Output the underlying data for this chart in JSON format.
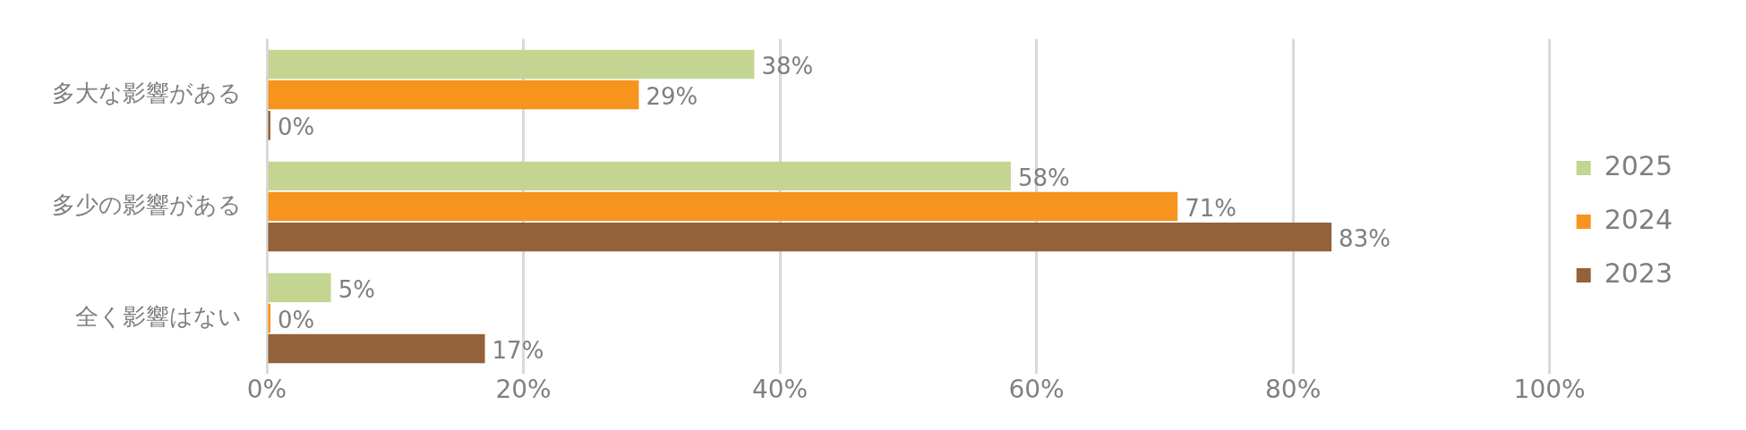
{
  "chart_data": {
    "type": "bar",
    "orientation": "horizontal",
    "categories": [
      "多大な影響がある",
      "多少の影響がある",
      "全く影響はない"
    ],
    "series": [
      {
        "name": "2025",
        "color": "#c4d592",
        "values": [
          38,
          58,
          5
        ],
        "value_labels": [
          "38%",
          "58%",
          "5%"
        ]
      },
      {
        "name": "2024",
        "color": "#f7941d",
        "values": [
          29,
          71,
          0
        ],
        "value_labels": [
          "29%",
          "71%",
          "0%"
        ]
      },
      {
        "name": "2023",
        "color": "#93613a",
        "values": [
          0,
          83,
          17
        ],
        "value_labels": [
          "0%",
          "83%",
          "17%"
        ]
      }
    ],
    "xlim": [
      0,
      100
    ],
    "xticks": [
      {
        "value": 0,
        "label": "0%"
      },
      {
        "value": 20,
        "label": "20%"
      },
      {
        "value": 40,
        "label": "40%"
      },
      {
        "value": 60,
        "label": "60%"
      },
      {
        "value": 80,
        "label": "80%"
      },
      {
        "value": 100,
        "label": "100%"
      }
    ],
    "grid": "x",
    "legend": "right"
  }
}
